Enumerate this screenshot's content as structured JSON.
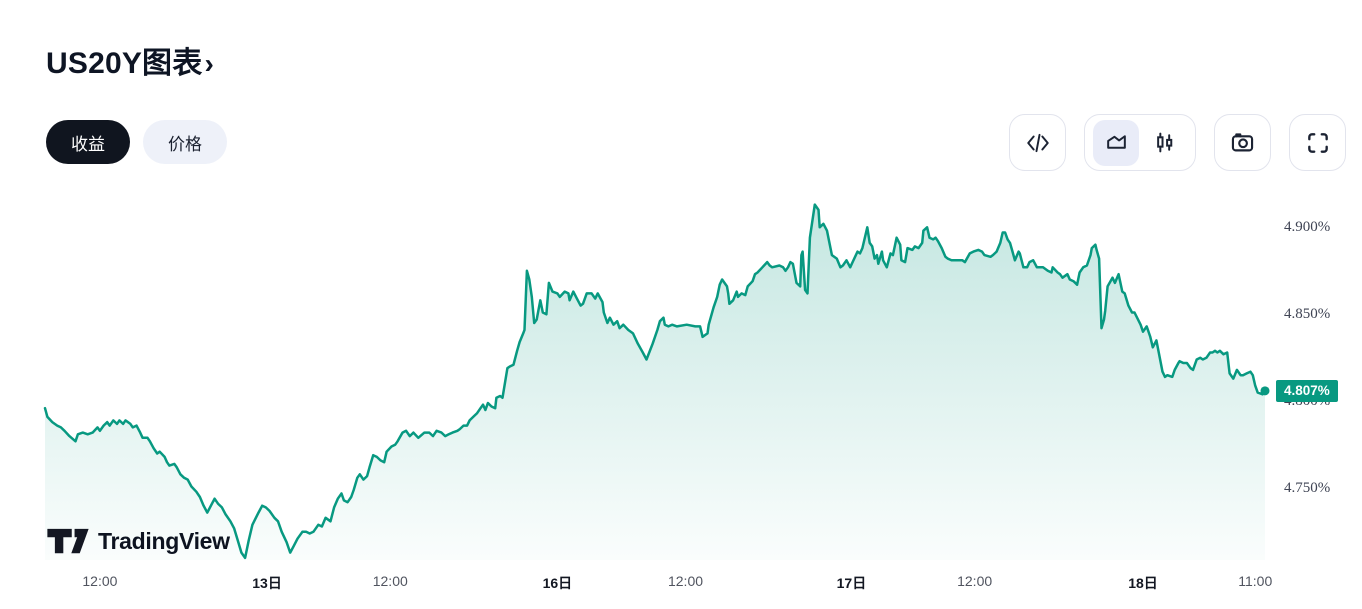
{
  "header": {
    "title": "US20Y图表",
    "chevron": "›"
  },
  "controls": {
    "view_toggle": [
      {
        "id": "yield",
        "label": "收益",
        "selected": true
      },
      {
        "id": "price",
        "label": "价格",
        "selected": false
      }
    ],
    "icon_buttons": [
      {
        "id": "embed-code",
        "icon": "code"
      },
      {
        "id": "chart-style",
        "group": [
          {
            "id": "area-chart",
            "icon": "area",
            "selected": true
          },
          {
            "id": "candlestick",
            "icon": "candles",
            "selected": false
          }
        ]
      },
      {
        "id": "snapshot",
        "icon": "camera"
      },
      {
        "id": "fullscreen",
        "icon": "fullscreen"
      }
    ]
  },
  "watermark": {
    "brand": "TradingView"
  },
  "chart_data": {
    "type": "area",
    "symbol": "US20Y",
    "unit": "%",
    "line_color": "#089981",
    "fill_top": "rgba(8,153,129,0.24)",
    "fill_bottom": "rgba(8,153,129,0.02)",
    "last": {
      "value": 4.807,
      "label": "4.807%",
      "badge_color": "#089981"
    },
    "ylim": [
      4.71,
      4.925
    ],
    "grid": false,
    "y_axis": {
      "side": "right",
      "ticks": [
        {
          "value": 4.9,
          "label": "4.900%"
        },
        {
          "value": 4.85,
          "label": "4.850%"
        },
        {
          "value": 4.8,
          "label": "4.800%"
        },
        {
          "value": 4.75,
          "label": "4.750%"
        }
      ]
    },
    "x_axis": {
      "ticks": [
        {
          "pos": 0.045,
          "label": "12:00",
          "major": false
        },
        {
          "pos": 0.182,
          "label": "13日",
          "major": true
        },
        {
          "pos": 0.283,
          "label": "12:00",
          "major": false
        },
        {
          "pos": 0.42,
          "label": "16日",
          "major": true
        },
        {
          "pos": 0.525,
          "label": "12:00",
          "major": false
        },
        {
          "pos": 0.661,
          "label": "17日",
          "major": true
        },
        {
          "pos": 0.762,
          "label": "12:00",
          "major": false
        },
        {
          "pos": 0.9,
          "label": "18日",
          "major": true
        },
        {
          "pos": 0.992,
          "label": "11:00",
          "major": false
        }
      ]
    },
    "points": [
      [
        0.0,
        4.797
      ],
      [
        0.002,
        4.792
      ],
      [
        0.006,
        4.789
      ],
      [
        0.01,
        4.787
      ],
      [
        0.013,
        4.786
      ],
      [
        0.016,
        4.784
      ],
      [
        0.02,
        4.781
      ],
      [
        0.025,
        4.778
      ],
      [
        0.027,
        4.782
      ],
      [
        0.031,
        4.783
      ],
      [
        0.035,
        4.782
      ],
      [
        0.039,
        4.783
      ],
      [
        0.043,
        4.786
      ],
      [
        0.045,
        4.784
      ],
      [
        0.048,
        4.787
      ],
      [
        0.051,
        4.789
      ],
      [
        0.053,
        4.787
      ],
      [
        0.056,
        4.79
      ],
      [
        0.059,
        4.788
      ],
      [
        0.061,
        4.79
      ],
      [
        0.064,
        4.788
      ],
      [
        0.066,
        4.79
      ],
      [
        0.07,
        4.788
      ],
      [
        0.072,
        4.786
      ],
      [
        0.075,
        4.787
      ],
      [
        0.078,
        4.783
      ],
      [
        0.08,
        4.78
      ],
      [
        0.084,
        4.78
      ],
      [
        0.086,
        4.778
      ],
      [
        0.089,
        4.774
      ],
      [
        0.092,
        4.771
      ],
      [
        0.094,
        4.772
      ],
      [
        0.098,
        4.769
      ],
      [
        0.1,
        4.766
      ],
      [
        0.102,
        4.764
      ],
      [
        0.106,
        4.765
      ],
      [
        0.108,
        4.763
      ],
      [
        0.111,
        4.759
      ],
      [
        0.114,
        4.757
      ],
      [
        0.117,
        4.756
      ],
      [
        0.12,
        4.752
      ],
      [
        0.124,
        4.749
      ],
      [
        0.127,
        4.746
      ],
      [
        0.13,
        4.741
      ],
      [
        0.133,
        4.737
      ],
      [
        0.136,
        4.741
      ],
      [
        0.139,
        4.745
      ],
      [
        0.142,
        4.742
      ],
      [
        0.145,
        4.74
      ],
      [
        0.148,
        4.736
      ],
      [
        0.152,
        4.732
      ],
      [
        0.155,
        4.728
      ],
      [
        0.158,
        4.721
      ],
      [
        0.161,
        4.714
      ],
      [
        0.164,
        4.711
      ],
      [
        0.167,
        4.721
      ],
      [
        0.17,
        4.73
      ],
      [
        0.175,
        4.737
      ],
      [
        0.178,
        4.741
      ],
      [
        0.181,
        4.74
      ],
      [
        0.184,
        4.738
      ],
      [
        0.188,
        4.734
      ],
      [
        0.191,
        4.732
      ],
      [
        0.194,
        4.726
      ],
      [
        0.198,
        4.72
      ],
      [
        0.201,
        4.714
      ],
      [
        0.204,
        4.718
      ],
      [
        0.207,
        4.722
      ],
      [
        0.211,
        4.726
      ],
      [
        0.214,
        4.726
      ],
      [
        0.217,
        4.725
      ],
      [
        0.22,
        4.726
      ],
      [
        0.224,
        4.73
      ],
      [
        0.227,
        4.729
      ],
      [
        0.23,
        4.734
      ],
      [
        0.234,
        4.732
      ],
      [
        0.237,
        4.74
      ],
      [
        0.24,
        4.745
      ],
      [
        0.243,
        4.748
      ],
      [
        0.245,
        4.744
      ],
      [
        0.248,
        4.743
      ],
      [
        0.251,
        4.746
      ],
      [
        0.253,
        4.75
      ],
      [
        0.256,
        4.757
      ],
      [
        0.258,
        4.759
      ],
      [
        0.261,
        4.756
      ],
      [
        0.264,
        4.758
      ],
      [
        0.266,
        4.763
      ],
      [
        0.269,
        4.77
      ],
      [
        0.272,
        4.769
      ],
      [
        0.275,
        4.767
      ],
      [
        0.278,
        4.766
      ],
      [
        0.28,
        4.772
      ],
      [
        0.284,
        4.775
      ],
      [
        0.287,
        4.776
      ],
      [
        0.289,
        4.778
      ],
      [
        0.293,
        4.783
      ],
      [
        0.296,
        4.784
      ],
      [
        0.299,
        4.781
      ],
      [
        0.302,
        4.783
      ],
      [
        0.306,
        4.78
      ],
      [
        0.311,
        4.783
      ],
      [
        0.315,
        4.783
      ],
      [
        0.318,
        4.781
      ],
      [
        0.321,
        4.784
      ],
      [
        0.325,
        4.783
      ],
      [
        0.328,
        4.781
      ],
      [
        0.331,
        4.782
      ],
      [
        0.334,
        4.783
      ],
      [
        0.338,
        4.784
      ],
      [
        0.34,
        4.785
      ],
      [
        0.343,
        4.787
      ],
      [
        0.346,
        4.787
      ],
      [
        0.348,
        4.79
      ],
      [
        0.351,
        4.792
      ],
      [
        0.354,
        4.794
      ],
      [
        0.357,
        4.797
      ],
      [
        0.359,
        4.799
      ],
      [
        0.361,
        4.796
      ],
      [
        0.363,
        4.8
      ],
      [
        0.366,
        4.798
      ],
      [
        0.369,
        4.797
      ],
      [
        0.37,
        4.803
      ],
      [
        0.373,
        4.804
      ],
      [
        0.375,
        4.803
      ],
      [
        0.379,
        4.82
      ],
      [
        0.381,
        4.821
      ],
      [
        0.384,
        4.822
      ],
      [
        0.387,
        4.83
      ],
      [
        0.389,
        4.835
      ],
      [
        0.392,
        4.84
      ],
      [
        0.393,
        4.842
      ],
      [
        0.395,
        4.876
      ],
      [
        0.397,
        4.871
      ],
      [
        0.399,
        4.861
      ],
      [
        0.401,
        4.846
      ],
      [
        0.403,
        4.848
      ],
      [
        0.406,
        4.859
      ],
      [
        0.408,
        4.852
      ],
      [
        0.411,
        4.851
      ],
      [
        0.413,
        4.869
      ],
      [
        0.416,
        4.864
      ],
      [
        0.42,
        4.863
      ],
      [
        0.422,
        4.861
      ],
      [
        0.426,
        4.864
      ],
      [
        0.429,
        4.863
      ],
      [
        0.43,
        4.859
      ],
      [
        0.433,
        4.864
      ],
      [
        0.436,
        4.86
      ],
      [
        0.439,
        4.856
      ],
      [
        0.441,
        4.857
      ],
      [
        0.444,
        4.863
      ],
      [
        0.448,
        4.863
      ],
      [
        0.451,
        4.86
      ],
      [
        0.453,
        4.863
      ],
      [
        0.457,
        4.858
      ],
      [
        0.458,
        4.852
      ],
      [
        0.461,
        4.846
      ],
      [
        0.463,
        4.849
      ],
      [
        0.466,
        4.845
      ],
      [
        0.469,
        4.847
      ],
      [
        0.471,
        4.843
      ],
      [
        0.474,
        4.845
      ],
      [
        0.478,
        4.842
      ],
      [
        0.482,
        4.84
      ],
      [
        0.486,
        4.834
      ],
      [
        0.49,
        4.829
      ],
      [
        0.493,
        4.825
      ],
      [
        0.498,
        4.834
      ],
      [
        0.502,
        4.842
      ],
      [
        0.504,
        4.847
      ],
      [
        0.507,
        4.849
      ],
      [
        0.508,
        4.845
      ],
      [
        0.511,
        4.844
      ],
      [
        0.514,
        4.845
      ],
      [
        0.518,
        4.844
      ],
      [
        0.526,
        4.845
      ],
      [
        0.533,
        4.844
      ],
      [
        0.537,
        4.844
      ],
      [
        0.539,
        4.838
      ],
      [
        0.543,
        4.84
      ],
      [
        0.544,
        4.845
      ],
      [
        0.548,
        4.855
      ],
      [
        0.551,
        4.861
      ],
      [
        0.553,
        4.868
      ],
      [
        0.555,
        4.871
      ],
      [
        0.559,
        4.867
      ],
      [
        0.56,
        4.863
      ],
      [
        0.561,
        4.857
      ],
      [
        0.564,
        4.859
      ],
      [
        0.567,
        4.864
      ],
      [
        0.568,
        4.861
      ],
      [
        0.571,
        4.863
      ],
      [
        0.574,
        4.862
      ],
      [
        0.576,
        4.867
      ],
      [
        0.58,
        4.87
      ],
      [
        0.582,
        4.874
      ],
      [
        0.584,
        4.875
      ],
      [
        0.588,
        4.878
      ],
      [
        0.592,
        4.881
      ],
      [
        0.594,
        4.879
      ],
      [
        0.596,
        4.878
      ],
      [
        0.602,
        4.879
      ],
      [
        0.605,
        4.878
      ],
      [
        0.607,
        4.876
      ],
      [
        0.609,
        4.878
      ],
      [
        0.611,
        4.881
      ],
      [
        0.613,
        4.88
      ],
      [
        0.616,
        4.869
      ],
      [
        0.619,
        4.867
      ],
      [
        0.62,
        4.885
      ],
      [
        0.621,
        4.887
      ],
      [
        0.623,
        4.865
      ],
      [
        0.625,
        4.863
      ],
      [
        0.627,
        4.895
      ],
      [
        0.631,
        4.914
      ],
      [
        0.634,
        4.911
      ],
      [
        0.635,
        4.901
      ],
      [
        0.638,
        4.903
      ],
      [
        0.641,
        4.899
      ],
      [
        0.645,
        4.885
      ],
      [
        0.649,
        4.883
      ],
      [
        0.652,
        4.878
      ],
      [
        0.654,
        4.879
      ],
      [
        0.657,
        4.882
      ],
      [
        0.66,
        4.878
      ],
      [
        0.662,
        4.881
      ],
      [
        0.666,
        4.887
      ],
      [
        0.668,
        4.886
      ],
      [
        0.67,
        4.889
      ],
      [
        0.674,
        4.901
      ],
      [
        0.676,
        4.892
      ],
      [
        0.678,
        4.89
      ],
      [
        0.68,
        4.883
      ],
      [
        0.682,
        4.885
      ],
      [
        0.683,
        4.88
      ],
      [
        0.686,
        4.887
      ],
      [
        0.687,
        4.882
      ],
      [
        0.69,
        4.878
      ],
      [
        0.693,
        4.886
      ],
      [
        0.695,
        4.885
      ],
      [
        0.698,
        4.895
      ],
      [
        0.701,
        4.891
      ],
      [
        0.702,
        4.882
      ],
      [
        0.705,
        4.881
      ],
      [
        0.707,
        4.889
      ],
      [
        0.711,
        4.888
      ],
      [
        0.713,
        4.89
      ],
      [
        0.716,
        4.889
      ],
      [
        0.719,
        4.892
      ],
      [
        0.72,
        4.899
      ],
      [
        0.723,
        4.901
      ],
      [
        0.725,
        4.895
      ],
      [
        0.728,
        4.894
      ],
      [
        0.73,
        4.895
      ],
      [
        0.732,
        4.893
      ],
      [
        0.735,
        4.889
      ],
      [
        0.738,
        4.884
      ],
      [
        0.74,
        4.883
      ],
      [
        0.743,
        4.882
      ],
      [
        0.748,
        4.882
      ],
      [
        0.752,
        4.882
      ],
      [
        0.754,
        4.881
      ],
      [
        0.758,
        4.886
      ],
      [
        0.761,
        4.887
      ],
      [
        0.765,
        4.888
      ],
      [
        0.768,
        4.887
      ],
      [
        0.77,
        4.885
      ],
      [
        0.775,
        4.884
      ],
      [
        0.777,
        4.885
      ],
      [
        0.78,
        4.887
      ],
      [
        0.783,
        4.892
      ],
      [
        0.785,
        4.898
      ],
      [
        0.787,
        4.898
      ],
      [
        0.789,
        4.894
      ],
      [
        0.791,
        4.892
      ],
      [
        0.793,
        4.887
      ],
      [
        0.795,
        4.882
      ],
      [
        0.798,
        4.887
      ],
      [
        0.799,
        4.886
      ],
      [
        0.802,
        4.878
      ],
      [
        0.805,
        4.878
      ],
      [
        0.807,
        4.881
      ],
      [
        0.81,
        4.882
      ],
      [
        0.813,
        4.878
      ],
      [
        0.816,
        4.878
      ],
      [
        0.818,
        4.878
      ],
      [
        0.822,
        4.876
      ],
      [
        0.825,
        4.875
      ],
      [
        0.826,
        4.878
      ],
      [
        0.83,
        4.875
      ],
      [
        0.832,
        4.874
      ],
      [
        0.834,
        4.872
      ],
      [
        0.838,
        4.874
      ],
      [
        0.84,
        4.871
      ],
      [
        0.843,
        4.87
      ],
      [
        0.846,
        4.868
      ],
      [
        0.848,
        4.875
      ],
      [
        0.851,
        4.878
      ],
      [
        0.854,
        4.879
      ],
      [
        0.857,
        4.885
      ],
      [
        0.858,
        4.889
      ],
      [
        0.861,
        4.891
      ],
      [
        0.862,
        4.888
      ],
      [
        0.864,
        4.883
      ],
      [
        0.866,
        4.843
      ],
      [
        0.868,
        4.848
      ],
      [
        0.869,
        4.853
      ],
      [
        0.871,
        4.867
      ],
      [
        0.875,
        4.872
      ],
      [
        0.877,
        4.869
      ],
      [
        0.88,
        4.874
      ],
      [
        0.883,
        4.864
      ],
      [
        0.885,
        4.863
      ],
      [
        0.888,
        4.856
      ],
      [
        0.891,
        4.852
      ],
      [
        0.893,
        4.852
      ],
      [
        0.898,
        4.845
      ],
      [
        0.9,
        4.841
      ],
      [
        0.903,
        4.844
      ],
      [
        0.906,
        4.838
      ],
      [
        0.908,
        4.832
      ],
      [
        0.911,
        4.836
      ],
      [
        0.916,
        4.818
      ],
      [
        0.918,
        4.815
      ],
      [
        0.92,
        4.816
      ],
      [
        0.924,
        4.815
      ],
      [
        0.926,
        4.819
      ],
      [
        0.929,
        4.823
      ],
      [
        0.93,
        4.824
      ],
      [
        0.933,
        4.823
      ],
      [
        0.936,
        4.823
      ],
      [
        0.939,
        4.82
      ],
      [
        0.941,
        4.819
      ],
      [
        0.944,
        4.825
      ],
      [
        0.947,
        4.826
      ],
      [
        0.949,
        4.825
      ],
      [
        0.952,
        4.826
      ],
      [
        0.955,
        4.829
      ],
      [
        0.957,
        4.829
      ],
      [
        0.959,
        4.83
      ],
      [
        0.961,
        4.829
      ],
      [
        0.963,
        4.83
      ],
      [
        0.966,
        4.828
      ],
      [
        0.969,
        4.829
      ],
      [
        0.971,
        4.817
      ],
      [
        0.974,
        4.814
      ],
      [
        0.977,
        4.819
      ],
      [
        0.98,
        4.816
      ],
      [
        0.982,
        4.816
      ],
      [
        0.985,
        4.817
      ],
      [
        0.988,
        4.818
      ],
      [
        0.99,
        4.816
      ],
      [
        0.992,
        4.81
      ],
      [
        0.994,
        4.806
      ],
      [
        0.998,
        4.805
      ],
      [
        1.0,
        4.807
      ]
    ]
  }
}
